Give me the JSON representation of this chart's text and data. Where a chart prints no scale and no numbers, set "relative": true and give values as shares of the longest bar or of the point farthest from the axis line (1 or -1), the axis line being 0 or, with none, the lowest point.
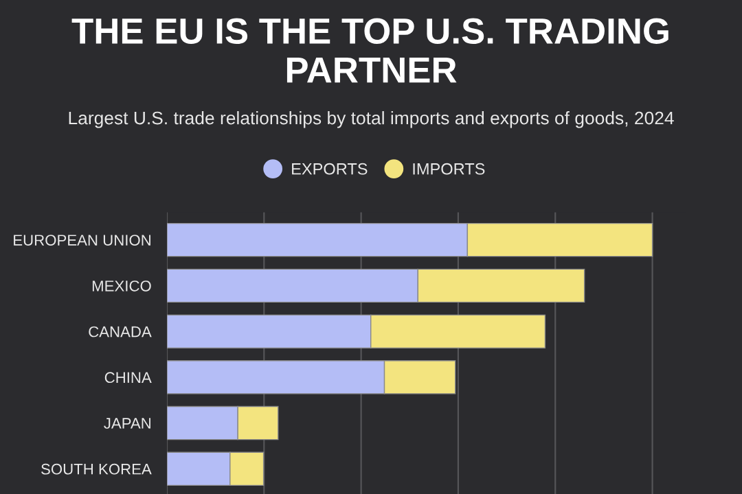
{
  "chart_data": {
    "type": "bar",
    "orientation": "horizontal",
    "stacked": true,
    "relative": true,
    "title": "THE EU IS THE TOP U.S. TRADING PARTNER",
    "subtitle": "Largest U.S. trade relationships by total imports and exports of goods, 2024",
    "categories": [
      "EUROPEAN UNION",
      "MEXICO",
      "CANADA",
      "CHINA",
      "JAPAN",
      "SOUTH KOREA"
    ],
    "series": [
      {
        "name": "EXPORTS",
        "color": "#b4bdf6",
        "values": [
          0.619,
          0.517,
          0.42,
          0.448,
          0.146,
          0.13
        ]
      },
      {
        "name": "IMPORTS",
        "color": "#f3e47f",
        "values": [
          0.381,
          0.343,
          0.359,
          0.146,
          0.083,
          0.069
        ]
      }
    ],
    "legend": "top",
    "grid": "x",
    "tick_labels": "y"
  }
}
